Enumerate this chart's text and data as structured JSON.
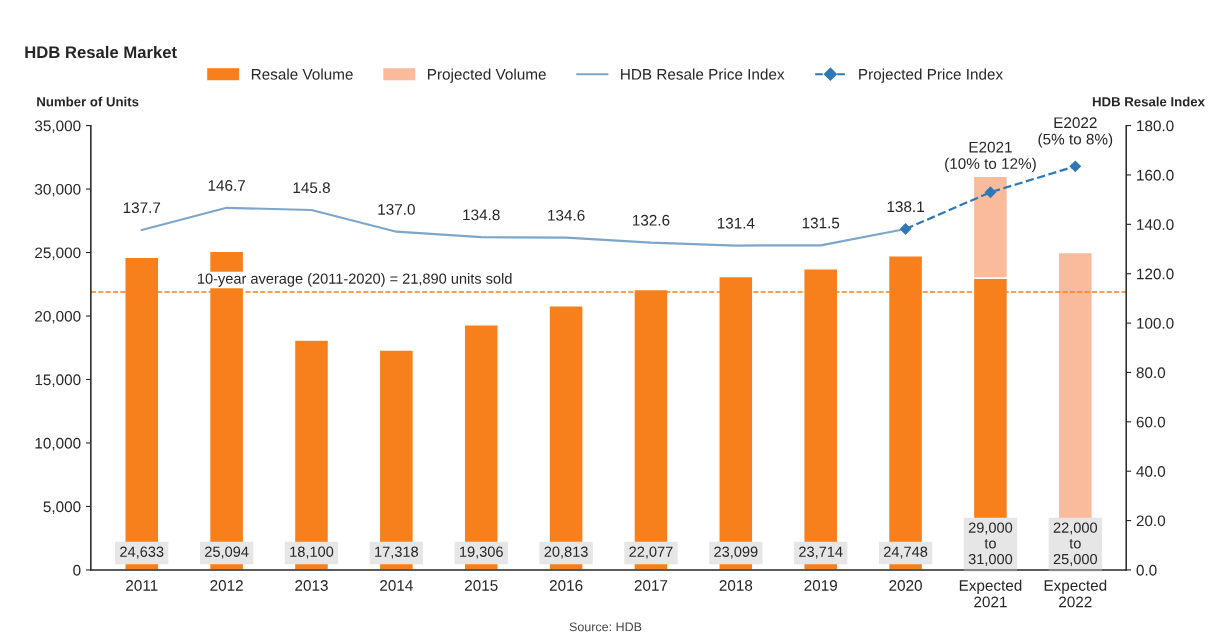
{
  "chart_data": {
    "type": "bar",
    "title": "HDB Resale Market",
    "ylabel": "Number of Units",
    "y2label": "HDB Resale Index",
    "categories": [
      "2011",
      "2012",
      "2013",
      "2014",
      "2015",
      "2016",
      "2017",
      "2018",
      "2019",
      "2020",
      "Expected\n2021",
      "Expected\n2022"
    ],
    "stacked": true,
    "series": [
      {
        "name": "Resale Volume",
        "color": "#f7801c",
        "values": [
          24633,
          25094,
          18100,
          17318,
          19306,
          20813,
          22077,
          23099,
          23714,
          24748,
          23000,
          null
        ],
        "value_labels": [
          "24,633",
          "25,094",
          "18,100",
          "17,318",
          "19,306",
          "20,813",
          "22,077",
          "23,099",
          "23,714",
          "24,748",
          null,
          null
        ]
      },
      {
        "name": "Projected Volume",
        "color": "#f9bb9c",
        "values": [
          null,
          null,
          null,
          null,
          null,
          null,
          null,
          null,
          null,
          null,
          8000,
          25000
        ]
      },
      {
        "name": "HDB Resale Price Index",
        "type": "line",
        "axis": "y2",
        "color": "#7da6cc",
        "marker": "none",
        "line_style": "solid",
        "values": [
          137.7,
          146.7,
          145.8,
          137.0,
          134.8,
          134.6,
          132.6,
          131.4,
          131.5,
          138.1,
          null,
          null
        ],
        "value_labels": [
          "137.7",
          "146.7",
          "145.8",
          "137.0",
          "134.8",
          "134.6",
          "132.6",
          "131.4",
          "131.5",
          "138.1",
          null,
          null
        ]
      },
      {
        "name": "Projected Price Index",
        "type": "line",
        "axis": "y2",
        "color": "#2f78b7",
        "marker": "diamond",
        "line_style": "dashed",
        "values": [
          null,
          null,
          null,
          null,
          null,
          null,
          null,
          null,
          null,
          138.1,
          153.0,
          163.5
        ]
      }
    ],
    "ylim": [
      0,
      35000
    ],
    "yticks": [
      {
        "value": 0,
        "label": "0"
      },
      {
        "value": 5000,
        "label": "5,000"
      },
      {
        "value": 10000,
        "label": "10,000"
      },
      {
        "value": 15000,
        "label": "15,000"
      },
      {
        "value": 20000,
        "label": "20,000"
      },
      {
        "value": 25000,
        "label": "25,000"
      },
      {
        "value": 30000,
        "label": "30,000"
      },
      {
        "value": 35000,
        "label": "35,000"
      }
    ],
    "y2lim": [
      0,
      180
    ],
    "y2ticks": [
      {
        "value": 0,
        "label": "0.0"
      },
      {
        "value": 20,
        "label": "20.0"
      },
      {
        "value": 40,
        "label": "40.0"
      },
      {
        "value": 60,
        "label": "60.0"
      },
      {
        "value": 80,
        "label": "80.0"
      },
      {
        "value": 100,
        "label": "100.0"
      },
      {
        "value": 120,
        "label": "120.0"
      },
      {
        "value": 140,
        "label": "140.0"
      },
      {
        "value": 160,
        "label": "160.0"
      },
      {
        "value": 180,
        "label": "180.0"
      }
    ],
    "ref_lines": [
      {
        "axis": "y",
        "value": 21890,
        "label": "10-year average (2011-2020) = 21,890 units sold",
        "color": "#f7801c",
        "line_style": "dashed"
      }
    ],
    "annotations": [
      "E2021\n(10% to 12%)",
      "E2022\n(5% to 8%)",
      "29,000\nto\n31,000",
      "22,000\nto\n25,000",
      "Source: HDB"
    ],
    "grid": false,
    "legend": "top"
  }
}
